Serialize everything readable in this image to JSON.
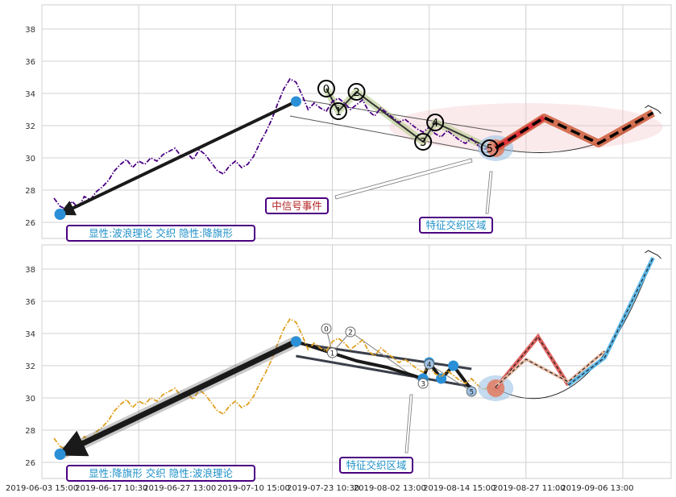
{
  "chart_data": [
    {
      "type": "line",
      "panel": "top",
      "ylim": [
        25,
        39.5
      ],
      "yticks": [
        26,
        28,
        30,
        32,
        34,
        36,
        38
      ],
      "grid": true,
      "series": [
        {
          "style": "dash-dot",
          "color": "#4b0082",
          "points": [
            [
              2,
              27.5
            ],
            [
              3,
              27.0
            ],
            [
              4,
              26.8
            ],
            [
              5,
              27.3
            ],
            [
              6,
              26.9
            ],
            [
              7,
              27.6
            ],
            [
              8,
              27.4
            ],
            [
              9,
              27.9
            ],
            [
              10,
              28.2
            ],
            [
              11,
              28.6
            ],
            [
              12,
              29.2
            ],
            [
              13,
              29.6
            ],
            [
              14,
              29.9
            ],
            [
              15,
              29.4
            ],
            [
              16,
              29.8
            ],
            [
              17,
              29.6
            ],
            [
              18,
              30.0
            ],
            [
              19,
              29.8
            ],
            [
              20,
              30.2
            ],
            [
              21,
              30.4
            ],
            [
              22,
              30.6
            ],
            [
              23,
              30.1
            ],
            [
              24,
              30.3
            ],
            [
              25,
              29.9
            ],
            [
              26,
              30.5
            ],
            [
              27,
              30.2
            ],
            [
              28,
              29.7
            ],
            [
              29,
              29.2
            ],
            [
              30,
              29.0
            ],
            [
              31,
              29.5
            ],
            [
              32,
              29.8
            ],
            [
              33,
              29.4
            ],
            [
              34,
              29.6
            ],
            [
              35,
              30.1
            ],
            [
              36,
              30.9
            ],
            [
              37,
              31.6
            ],
            [
              38,
              32.4
            ],
            [
              39,
              33.4
            ],
            [
              40,
              34.3
            ],
            [
              41,
              34.9
            ],
            [
              42,
              34.7
            ],
            [
              43,
              33.9
            ],
            [
              44,
              33.0
            ],
            [
              45,
              33.4
            ],
            [
              46,
              33.1
            ],
            [
              47,
              32.9
            ],
            [
              48,
              33.5
            ],
            [
              49,
              33.7
            ],
            [
              50,
              33.4
            ],
            [
              51,
              33.0
            ],
            [
              52,
              33.3
            ],
            [
              53,
              33.6
            ],
            [
              54,
              32.9
            ],
            [
              55,
              32.6
            ],
            [
              56,
              33.1
            ],
            [
              57,
              32.8
            ],
            [
              58,
              32.5
            ],
            [
              59,
              32.2
            ],
            [
              60,
              32.4
            ],
            [
              61,
              32.1
            ],
            [
              62,
              31.8
            ],
            [
              63,
              31.6
            ],
            [
              64,
              31.9
            ],
            [
              65,
              31.5
            ],
            [
              66,
              31.3
            ],
            [
              67,
              31.7
            ],
            [
              68,
              31.4
            ],
            [
              69,
              31.1
            ],
            [
              70,
              30.9
            ],
            [
              71,
              31.2
            ],
            [
              72,
              30.8
            ],
            [
              73,
              30.5
            ],
            [
              74,
              30.7
            ],
            [
              75,
              30.4
            ]
          ]
        },
        {
          "style": "bold-arrow",
          "color": "#1a1a1a",
          "points": [
            [
              3,
              26.5
            ],
            [
              42,
              33.5
            ]
          ]
        },
        {
          "style": "projection-dashed",
          "color": "#000000",
          "glow": "#cd5c3a",
          "points": [
            [
              75,
              30.6
            ],
            [
              83,
              32.5
            ],
            [
              92,
              30.9
            ],
            [
              101,
              32.8
            ]
          ]
        }
      ],
      "wave_labels": [
        {
          "label": "0",
          "x": 47,
          "y": 34.3
        },
        {
          "label": "1",
          "x": 49,
          "y": 32.9
        },
        {
          "label": "2",
          "x": 52,
          "y": 34.1
        },
        {
          "label": "3",
          "x": 63,
          "y": 31.0
        },
        {
          "label": "4",
          "x": 65,
          "y": 32.2
        },
        {
          "label": "5",
          "x": 74,
          "y": 30.6
        }
      ],
      "annotations": [
        {
          "text": "显性:波浪理论 交织 隐性:降旗形",
          "color": "#1e90c8"
        },
        {
          "text": "中信号事件",
          "color": "#b22222"
        },
        {
          "text": "特征交织区域",
          "color": "#1e90c8"
        }
      ]
    },
    {
      "type": "line",
      "panel": "bottom",
      "ylim": [
        25,
        39.5
      ],
      "yticks": [
        26,
        28,
        30,
        32,
        34,
        36,
        38
      ],
      "grid": true,
      "series": [
        {
          "style": "dash-dot",
          "color": "#e0a020",
          "points": [
            [
              2,
              27.5
            ],
            [
              3,
              27.0
            ],
            [
              4,
              26.8
            ],
            [
              5,
              27.3
            ],
            [
              6,
              26.9
            ],
            [
              7,
              27.6
            ],
            [
              8,
              27.4
            ],
            [
              9,
              27.9
            ],
            [
              10,
              28.2
            ],
            [
              11,
              28.6
            ],
            [
              12,
              29.2
            ],
            [
              13,
              29.6
            ],
            [
              14,
              29.9
            ],
            [
              15,
              29.4
            ],
            [
              16,
              29.8
            ],
            [
              17,
              29.6
            ],
            [
              18,
              30.0
            ],
            [
              19,
              29.8
            ],
            [
              20,
              30.2
            ],
            [
              21,
              30.4
            ],
            [
              22,
              30.6
            ],
            [
              23,
              30.1
            ],
            [
              24,
              30.3
            ],
            [
              25,
              29.9
            ],
            [
              26,
              30.5
            ],
            [
              27,
              30.2
            ],
            [
              28,
              29.7
            ],
            [
              29,
              29.2
            ],
            [
              30,
              29.0
            ],
            [
              31,
              29.5
            ],
            [
              32,
              29.8
            ],
            [
              33,
              29.4
            ],
            [
              34,
              29.6
            ],
            [
              35,
              30.1
            ],
            [
              36,
              30.9
            ],
            [
              37,
              31.6
            ],
            [
              38,
              32.4
            ],
            [
              39,
              33.4
            ],
            [
              40,
              34.3
            ],
            [
              41,
              34.9
            ],
            [
              42,
              34.7
            ],
            [
              43,
              33.9
            ],
            [
              44,
              33.0
            ],
            [
              45,
              33.4
            ],
            [
              46,
              33.1
            ],
            [
              47,
              32.9
            ],
            [
              48,
              33.5
            ],
            [
              49,
              33.7
            ],
            [
              50,
              33.4
            ],
            [
              51,
              33.0
            ],
            [
              52,
              33.3
            ],
            [
              53,
              33.6
            ],
            [
              54,
              32.9
            ],
            [
              55,
              32.6
            ],
            [
              56,
              33.1
            ],
            [
              57,
              32.8
            ],
            [
              58,
              32.5
            ],
            [
              59,
              32.2
            ],
            [
              60,
              32.4
            ],
            [
              61,
              32.1
            ],
            [
              62,
              31.8
            ],
            [
              63,
              31.6
            ],
            [
              64,
              31.9
            ],
            [
              65,
              31.5
            ],
            [
              66,
              31.3
            ],
            [
              67,
              31.7
            ],
            [
              68,
              31.4
            ],
            [
              69,
              31.1
            ],
            [
              70,
              30.9
            ],
            [
              71,
              31.2
            ],
            [
              72,
              30.8
            ],
            [
              73,
              30.5
            ],
            [
              74,
              30.7
            ],
            [
              75,
              30.4
            ]
          ]
        },
        {
          "style": "bold-arrow",
          "color": "#1a1a1a",
          "points": [
            [
              3,
              26.5
            ],
            [
              42,
              33.5
            ]
          ]
        },
        {
          "style": "projection-dashed",
          "color": "#000000",
          "glow": "#cd5c3a",
          "points": [
            [
              75,
              30.6
            ],
            [
              82,
              33.8
            ],
            [
              87,
              30.8
            ],
            [
              93,
              32.5
            ],
            [
              101,
              38.7
            ]
          ]
        }
      ],
      "wave_labels": [
        {
          "label": "0",
          "x": 47,
          "y": 34.3
        },
        {
          "label": "1",
          "x": 48,
          "y": 32.8
        },
        {
          "label": "2",
          "x": 51,
          "y": 34.1
        },
        {
          "label": "3",
          "x": 63,
          "y": 30.9
        },
        {
          "label": "4",
          "x": 64,
          "y": 32.1
        },
        {
          "label": "5",
          "x": 71,
          "y": 30.4
        }
      ],
      "annotations": [
        {
          "text": "显性:降旗形 交织 隐性:波浪理论",
          "color": "#1e90c8"
        },
        {
          "text": "特征交织区域",
          "color": "#1e90c8"
        }
      ]
    }
  ],
  "x_tick_labels": [
    "2019-06-03 15:00",
    "2019-06-17 10:30",
    "2019-06-27 13:00",
    "2019-07-10 15:00",
    "2019-07-23 10:30",
    "2019-08-02 13:00",
    "2019-08-14 15:00",
    "2019-08-27 11:00",
    "2019-09-06 13:00"
  ]
}
